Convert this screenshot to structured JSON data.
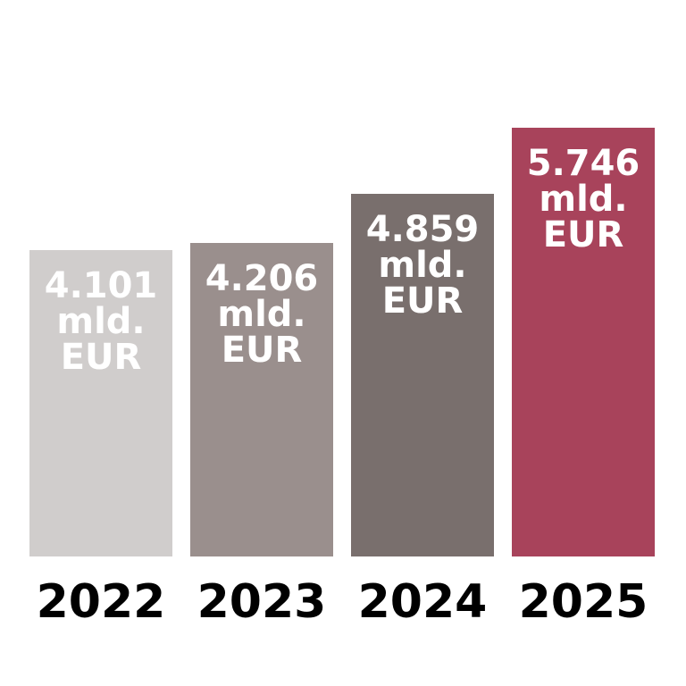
{
  "chart_data": {
    "type": "bar",
    "categories": [
      "2022",
      "2023",
      "2024",
      "2025"
    ],
    "values": [
      4.101,
      4.206,
      4.859,
      5.746
    ],
    "value_labels": [
      "4.101\nmld.\nEUR",
      "4.206\nmld.\nEUR",
      "4.859\nmld.\nEUR",
      "5.746\nmld.\nEUR"
    ],
    "colors": [
      "#d0cdcc",
      "#9a8f8d",
      "#796f6d",
      "#a8435b"
    ]
  }
}
